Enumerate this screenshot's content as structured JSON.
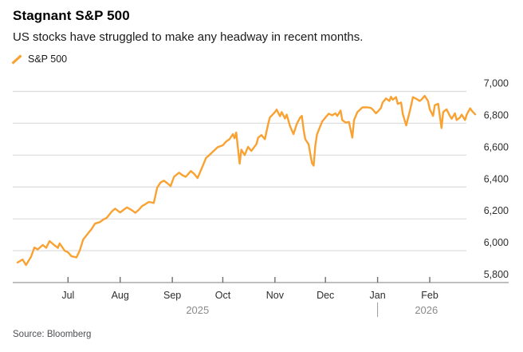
{
  "header": {
    "title": "Stagnant S&P 500",
    "subtitle": "US stocks have struggled to make any headway in recent months.",
    "legend": [
      {
        "label": "S&P 500",
        "marker": "slash-icon",
        "color": "#F9A232"
      }
    ]
  },
  "footer": {
    "source": "Source: Bloomberg"
  },
  "chart_data": {
    "type": "line",
    "title": "Stagnant S&P 500",
    "subtitle": "US stocks have struggled to make any headway in recent months.",
    "xlabel": "",
    "ylabel": "",
    "grid": "horizontal",
    "legend_position": "top-left",
    "x_range": [
      "2025-06-01",
      "2026-02-28"
    ],
    "ylim": [
      5800,
      7000
    ],
    "y_ticks": [
      7000,
      6800,
      6600,
      6400,
      6200,
      6000,
      5800
    ],
    "y_tick_labels": [
      "7,000",
      "6,800",
      "6,600",
      "6,400",
      "6,200",
      "6,000",
      "5,800"
    ],
    "x_ticks": [
      {
        "date": "2025-07-01",
        "label": "Jul"
      },
      {
        "date": "2025-08-01",
        "label": "Aug"
      },
      {
        "date": "2025-09-01",
        "label": "Sep"
      },
      {
        "date": "2025-10-01",
        "label": "Oct"
      },
      {
        "date": "2025-11-01",
        "label": "Nov"
      },
      {
        "date": "2025-12-01",
        "label": "Dec"
      },
      {
        "date": "2026-01-01",
        "label": "Jan"
      },
      {
        "date": "2026-02-01",
        "label": "Feb"
      }
    ],
    "year_labels": [
      "2025",
      "2026"
    ],
    "year_boundary": "2026-01-01",
    "colors": {
      "line": "#F9A232",
      "grid": "#DBDBDB",
      "axis": "#BFBFBF",
      "tick": "#6E6E6E",
      "axis_label": "#2D2D2D",
      "year_label": "#8A8A8A",
      "divider": "#9A9A9A"
    },
    "series": [
      {
        "name": "S&P 500",
        "color": "#F9A232",
        "points": [
          [
            "2025-06-01",
            5926
          ],
          [
            "2025-06-04",
            5945
          ],
          [
            "2025-06-06",
            5910
          ],
          [
            "2025-06-09",
            5962
          ],
          [
            "2025-06-11",
            6020
          ],
          [
            "2025-06-13",
            6008
          ],
          [
            "2025-06-16",
            6036
          ],
          [
            "2025-06-18",
            6018
          ],
          [
            "2025-06-20",
            6060
          ],
          [
            "2025-06-23",
            6034
          ],
          [
            "2025-06-25",
            6018
          ],
          [
            "2025-06-26",
            6046
          ],
          [
            "2025-06-29",
            6000
          ],
          [
            "2025-07-01",
            5990
          ],
          [
            "2025-07-03",
            5966
          ],
          [
            "2025-07-06",
            5958
          ],
          [
            "2025-07-08",
            6002
          ],
          [
            "2025-07-10",
            6070
          ],
          [
            "2025-07-13",
            6110
          ],
          [
            "2025-07-15",
            6136
          ],
          [
            "2025-07-17",
            6170
          ],
          [
            "2025-07-20",
            6180
          ],
          [
            "2025-07-22",
            6196
          ],
          [
            "2025-07-24",
            6206
          ],
          [
            "2025-07-27",
            6246
          ],
          [
            "2025-07-29",
            6264
          ],
          [
            "2025-08-01",
            6240
          ],
          [
            "2025-08-03",
            6256
          ],
          [
            "2025-08-05",
            6272
          ],
          [
            "2025-08-08",
            6254
          ],
          [
            "2025-08-10",
            6238
          ],
          [
            "2025-08-12",
            6256
          ],
          [
            "2025-08-14",
            6280
          ],
          [
            "2025-08-16",
            6292
          ],
          [
            "2025-08-18",
            6306
          ],
          [
            "2025-08-21",
            6300
          ],
          [
            "2025-08-23",
            6396
          ],
          [
            "2025-08-25",
            6428
          ],
          [
            "2025-08-27",
            6440
          ],
          [
            "2025-08-29",
            6424
          ],
          [
            "2025-08-31",
            6406
          ],
          [
            "2025-09-02",
            6464
          ],
          [
            "2025-09-05",
            6490
          ],
          [
            "2025-09-07",
            6474
          ],
          [
            "2025-09-09",
            6464
          ],
          [
            "2025-09-12",
            6500
          ],
          [
            "2025-09-14",
            6482
          ],
          [
            "2025-09-16",
            6456
          ],
          [
            "2025-09-19",
            6530
          ],
          [
            "2025-09-21",
            6582
          ],
          [
            "2025-09-23",
            6600
          ],
          [
            "2025-09-26",
            6630
          ],
          [
            "2025-09-28",
            6650
          ],
          [
            "2025-10-01",
            6662
          ],
          [
            "2025-10-03",
            6686
          ],
          [
            "2025-10-05",
            6700
          ],
          [
            "2025-10-07",
            6732
          ],
          [
            "2025-10-08",
            6706
          ],
          [
            "2025-10-09",
            6742
          ],
          [
            "2025-10-11",
            6546
          ],
          [
            "2025-10-12",
            6634
          ],
          [
            "2025-10-14",
            6600
          ],
          [
            "2025-10-16",
            6652
          ],
          [
            "2025-10-18",
            6626
          ],
          [
            "2025-10-21",
            6670
          ],
          [
            "2025-10-22",
            6710
          ],
          [
            "2025-10-24",
            6726
          ],
          [
            "2025-10-26",
            6700
          ],
          [
            "2025-10-28",
            6796
          ],
          [
            "2025-10-29",
            6836
          ],
          [
            "2025-11-01",
            6870
          ],
          [
            "2025-11-02",
            6886
          ],
          [
            "2025-11-04",
            6844
          ],
          [
            "2025-11-05",
            6870
          ],
          [
            "2025-11-07",
            6830
          ],
          [
            "2025-11-08",
            6854
          ],
          [
            "2025-11-10",
            6780
          ],
          [
            "2025-11-12",
            6732
          ],
          [
            "2025-11-14",
            6796
          ],
          [
            "2025-11-16",
            6836
          ],
          [
            "2025-11-17",
            6846
          ],
          [
            "2025-11-18",
            6760
          ],
          [
            "2025-11-19",
            6700
          ],
          [
            "2025-11-21",
            6668
          ],
          [
            "2025-11-23",
            6550
          ],
          [
            "2025-11-24",
            6534
          ],
          [
            "2025-11-25",
            6660
          ],
          [
            "2025-11-26",
            6730
          ],
          [
            "2025-11-29",
            6810
          ],
          [
            "2025-12-01",
            6836
          ],
          [
            "2025-12-03",
            6860
          ],
          [
            "2025-12-05",
            6850
          ],
          [
            "2025-12-07",
            6862
          ],
          [
            "2025-12-08",
            6846
          ],
          [
            "2025-12-10",
            6880
          ],
          [
            "2025-12-11",
            6820
          ],
          [
            "2025-12-13",
            6804
          ],
          [
            "2025-12-15",
            6808
          ],
          [
            "2025-12-17",
            6710
          ],
          [
            "2025-12-18",
            6820
          ],
          [
            "2025-12-20",
            6870
          ],
          [
            "2025-12-22",
            6890
          ],
          [
            "2025-12-23",
            6900
          ],
          [
            "2025-12-26",
            6900
          ],
          [
            "2025-12-28",
            6896
          ],
          [
            "2025-12-29",
            6888
          ],
          [
            "2025-12-31",
            6862
          ],
          [
            "2026-01-01",
            6872
          ],
          [
            "2026-01-03",
            6896
          ],
          [
            "2026-01-04",
            6930
          ],
          [
            "2026-01-06",
            6956
          ],
          [
            "2026-01-08",
            6940
          ],
          [
            "2026-01-09",
            6966
          ],
          [
            "2026-01-10",
            6948
          ],
          [
            "2026-01-12",
            6964
          ],
          [
            "2026-01-13",
            6922
          ],
          [
            "2026-01-15",
            6930
          ],
          [
            "2026-01-16",
            6856
          ],
          [
            "2026-01-18",
            6786
          ],
          [
            "2026-01-20",
            6870
          ],
          [
            "2026-01-21",
            6914
          ],
          [
            "2026-01-22",
            6964
          ],
          [
            "2026-01-24",
            6954
          ],
          [
            "2026-01-26",
            6940
          ],
          [
            "2026-01-27",
            6948
          ],
          [
            "2026-01-29",
            6972
          ],
          [
            "2026-01-31",
            6940
          ],
          [
            "2026-02-01",
            6888
          ],
          [
            "2026-02-03",
            6846
          ],
          [
            "2026-02-04",
            6914
          ],
          [
            "2026-02-06",
            6922
          ],
          [
            "2026-02-08",
            6770
          ],
          [
            "2026-02-09",
            6870
          ],
          [
            "2026-02-11",
            6888
          ],
          [
            "2026-02-13",
            6846
          ],
          [
            "2026-02-14",
            6828
          ],
          [
            "2026-02-16",
            6862
          ],
          [
            "2026-02-17",
            6820
          ],
          [
            "2026-02-19",
            6836
          ],
          [
            "2026-02-20",
            6854
          ],
          [
            "2026-02-22",
            6820
          ],
          [
            "2026-02-23",
            6854
          ],
          [
            "2026-02-25",
            6894
          ],
          [
            "2026-02-26",
            6878
          ],
          [
            "2026-02-28",
            6856
          ]
        ]
      }
    ]
  }
}
